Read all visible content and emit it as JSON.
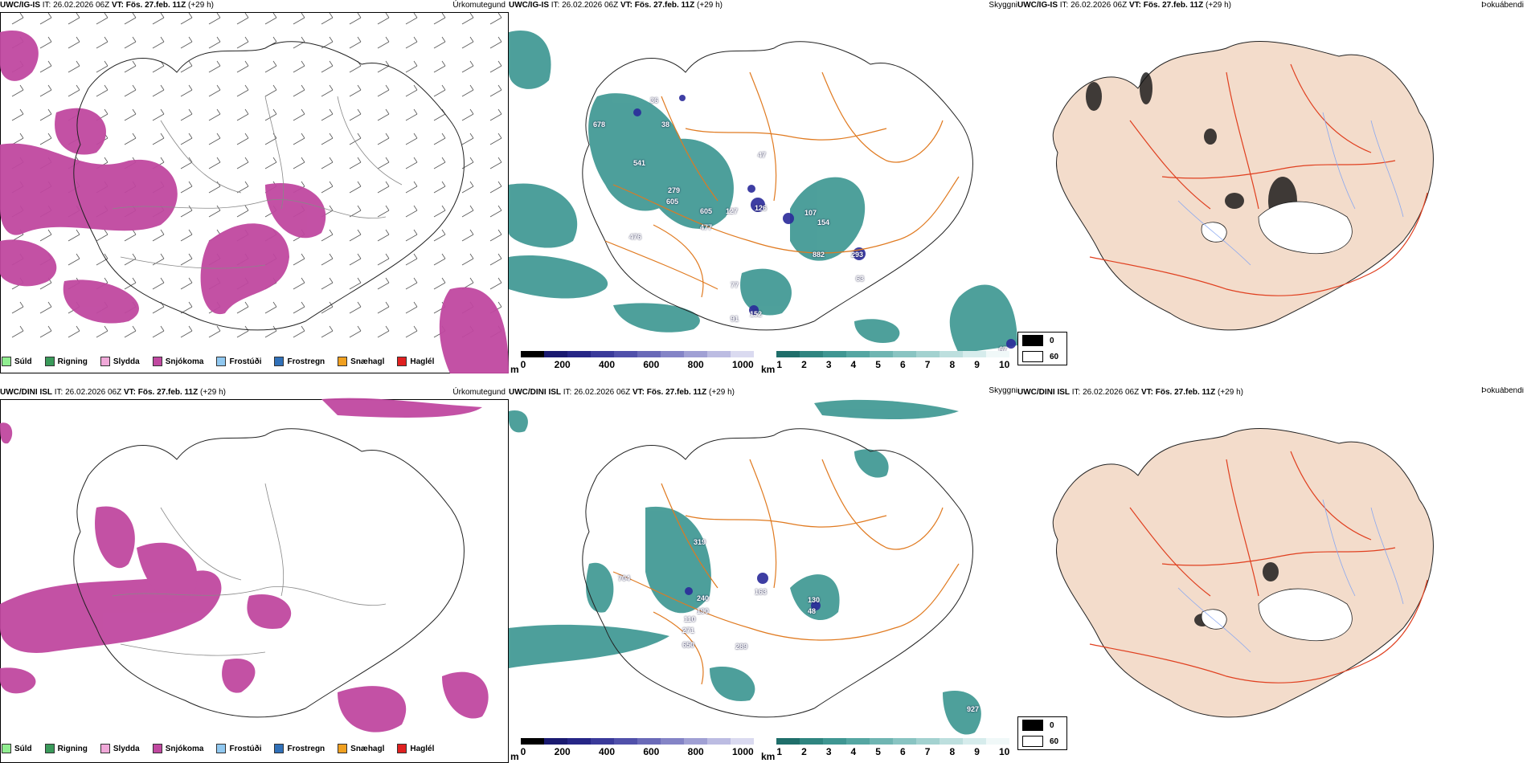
{
  "rows": [
    {
      "precip": {
        "model": "UWC/IG-IS",
        "it_label": "IT:",
        "it": "26.02.2026 06Z",
        "vt_label": "VT:",
        "vt": "Fös. 27.feb. 11Z",
        "lead": "(+29 h)",
        "tag": "Úrkomutegund"
      },
      "cloud": {
        "model": "UWC/IG-IS",
        "it_label": "IT:",
        "it": "26.02.2026 06Z",
        "vt_label": "VT:",
        "vt": "Fös. 27.feb. 11Z",
        "lead": "(+29 h)",
        "tag": "Skyggni",
        "labels": [
          "678",
          "541",
          "279",
          "605",
          "605",
          "477",
          "476",
          "126",
          "107",
          "154",
          "882",
          "293",
          "63",
          "77",
          "152",
          "91",
          "67",
          "38",
          "36",
          "47",
          "127"
        ]
      },
      "fog": {
        "model": "UWC/IG-IS",
        "it_label": "IT:",
        "it": "26.02.2026 06Z",
        "vt_label": "VT:",
        "vt": "Fös. 27.feb. 11Z",
        "lead": "(+29 h)",
        "tag": "Þokuábendi"
      }
    },
    {
      "precip": {
        "model": "UWC/DINI ISL",
        "it_label": "IT:",
        "it": "26.02.2026 06Z",
        "vt_label": "VT:",
        "vt": "Fös. 27.feb. 11Z",
        "lead": "(+29 h)",
        "tag": "Úrkomutegund"
      },
      "cloud": {
        "model": "UWC/DINI ISL",
        "it_label": "IT:",
        "it": "26.02.2026 06Z",
        "vt_label": "VT:",
        "vt": "Fös. 27.feb. 11Z",
        "lead": "(+29 h)",
        "tag": "Skyggni",
        "labels": [
          "319",
          "704",
          "240",
          "190",
          "110",
          "271",
          "650",
          "289",
          "163",
          "130",
          "48",
          "927"
        ]
      },
      "fog": {
        "model": "UWC/DINI ISL",
        "it_label": "IT:",
        "it": "26.02.2026 06Z",
        "vt_label": "VT:",
        "vt": "Fös. 27.feb. 11Z",
        "lead": "(+29 h)",
        "tag": "Þokuábendi"
      }
    }
  ],
  "precip_legend": [
    {
      "label": "Súld",
      "color": "#90ee90"
    },
    {
      "label": "Rigning",
      "color": "#3a9a5a"
    },
    {
      "label": "Slydda",
      "color": "#f0a8d8"
    },
    {
      "label": "Snjókoma",
      "color": "#c048a0"
    },
    {
      "label": "Frostúði",
      "color": "#90c8f0"
    },
    {
      "label": "Frostregn",
      "color": "#3070b8"
    },
    {
      "label": "Snæhagl",
      "color": "#f0a020"
    },
    {
      "label": "Haglél",
      "color": "#e02020"
    }
  ],
  "cloudbase_bar": {
    "unit": "m",
    "ticks": [
      "0",
      "200",
      "400",
      "600",
      "800",
      "1000"
    ]
  },
  "visibility_bar": {
    "unit": "km",
    "ticks": [
      "1",
      "2",
      "3",
      "4",
      "5",
      "6",
      "7",
      "8",
      "9",
      "10"
    ]
  },
  "fog_legend": [
    {
      "label": "0",
      "color": "#000000"
    },
    {
      "label": "60",
      "color": "#ffffff"
    }
  ],
  "colors": {
    "snow": "#c048a0",
    "teal": "#2f8f8a",
    "land": "#f3dccb",
    "road_orange": "#e07a20",
    "road_red": "#e04020",
    "river": "#8aa8f0"
  }
}
